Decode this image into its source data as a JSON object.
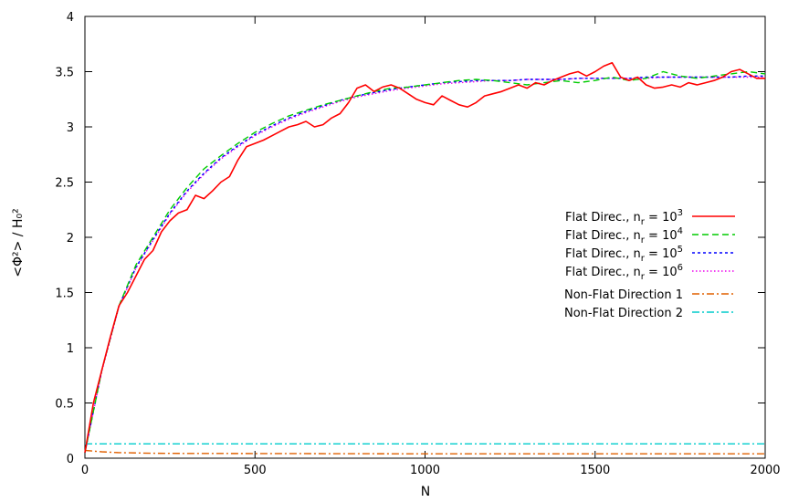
{
  "chart_data": {
    "type": "line",
    "xlabel": "N",
    "ylabel": "<Φ²> / H₀²",
    "xlim": [
      0,
      2000
    ],
    "ylim": [
      0,
      4
    ],
    "x_ticks": [
      "0",
      "500",
      "1000",
      "1500",
      "2000"
    ],
    "y_ticks": [
      "0",
      "0.5",
      "1",
      "1.5",
      "2",
      "2.5",
      "3",
      "3.5",
      "4"
    ],
    "grid": false,
    "legend_position": "right",
    "series": [
      {
        "name": "Flat Direc., n_r = 10^3",
        "legend_prefix": "Flat Direc., n",
        "legend_sub": "r",
        "legend_mid": " = 10",
        "legend_sup": "3",
        "color": "#ff0000",
        "dash": "",
        "x": [
          0,
          25,
          50,
          75,
          100,
          125,
          150,
          175,
          200,
          225,
          250,
          275,
          300,
          325,
          350,
          375,
          400,
          425,
          450,
          475,
          500,
          525,
          550,
          575,
          600,
          625,
          650,
          675,
          700,
          725,
          750,
          775,
          800,
          825,
          850,
          875,
          900,
          925,
          950,
          975,
          1000,
          1025,
          1050,
          1075,
          1100,
          1125,
          1150,
          1175,
          1200,
          1225,
          1250,
          1275,
          1300,
          1325,
          1350,
          1375,
          1400,
          1425,
          1450,
          1475,
          1500,
          1525,
          1550,
          1575,
          1600,
          1625,
          1650,
          1675,
          1700,
          1725,
          1750,
          1775,
          1800,
          1825,
          1850,
          1875,
          1900,
          1925,
          1950,
          1975,
          2000
        ],
        "y": [
          0.05,
          0.5,
          0.8,
          1.1,
          1.38,
          1.5,
          1.65,
          1.8,
          1.88,
          2.05,
          2.15,
          2.22,
          2.25,
          2.38,
          2.35,
          2.42,
          2.5,
          2.55,
          2.7,
          2.82,
          2.85,
          2.88,
          2.92,
          2.96,
          3.0,
          3.02,
          3.05,
          3.0,
          3.02,
          3.08,
          3.12,
          3.22,
          3.35,
          3.38,
          3.32,
          3.36,
          3.38,
          3.35,
          3.3,
          3.25,
          3.22,
          3.2,
          3.28,
          3.24,
          3.2,
          3.18,
          3.22,
          3.28,
          3.3,
          3.32,
          3.35,
          3.38,
          3.35,
          3.4,
          3.38,
          3.42,
          3.45,
          3.48,
          3.5,
          3.46,
          3.5,
          3.55,
          3.58,
          3.45,
          3.42,
          3.45,
          3.38,
          3.35,
          3.36,
          3.38,
          3.36,
          3.4,
          3.38,
          3.4,
          3.42,
          3.45,
          3.5,
          3.52,
          3.48,
          3.44,
          3.44
        ]
      },
      {
        "name": "Flat Direc., n_r = 10^4",
        "legend_prefix": "Flat Direc., n",
        "legend_sub": "r",
        "legend_mid": " = 10",
        "legend_sup": "4",
        "color": "#00cc00",
        "dash": "7,4",
        "x": [
          0,
          50,
          100,
          150,
          200,
          250,
          300,
          350,
          400,
          450,
          500,
          550,
          600,
          650,
          700,
          750,
          800,
          850,
          900,
          950,
          1000,
          1050,
          1100,
          1150,
          1200,
          1250,
          1300,
          1350,
          1400,
          1450,
          1500,
          1550,
          1600,
          1650,
          1700,
          1750,
          1800,
          1850,
          1900,
          1950,
          2000
        ],
        "y": [
          0.05,
          0.8,
          1.38,
          1.75,
          2.0,
          2.25,
          2.45,
          2.62,
          2.74,
          2.85,
          2.95,
          3.03,
          3.1,
          3.15,
          3.2,
          3.24,
          3.28,
          3.32,
          3.35,
          3.36,
          3.38,
          3.4,
          3.42,
          3.43,
          3.42,
          3.4,
          3.38,
          3.4,
          3.42,
          3.4,
          3.42,
          3.45,
          3.42,
          3.44,
          3.5,
          3.46,
          3.44,
          3.46,
          3.48,
          3.5,
          3.48
        ]
      },
      {
        "name": "Flat Direc., n_r = 10^5",
        "legend_prefix": "Flat Direc., n",
        "legend_sub": "r",
        "legend_mid": " = 10",
        "legend_sup": "5",
        "color": "#0000ff",
        "dash": "3,3",
        "x": [
          0,
          50,
          100,
          150,
          200,
          250,
          300,
          350,
          400,
          450,
          500,
          550,
          600,
          650,
          700,
          750,
          800,
          850,
          900,
          950,
          1000,
          1050,
          1100,
          1150,
          1200,
          1250,
          1300,
          1350,
          1400,
          1450,
          1500,
          1550,
          1600,
          1650,
          1700,
          1750,
          1800,
          1850,
          1900,
          1950,
          2000
        ],
        "y": [
          0.05,
          0.8,
          1.38,
          1.73,
          1.98,
          2.22,
          2.42,
          2.58,
          2.72,
          2.83,
          2.93,
          3.01,
          3.08,
          3.14,
          3.19,
          3.24,
          3.28,
          3.31,
          3.34,
          3.36,
          3.38,
          3.4,
          3.41,
          3.42,
          3.42,
          3.42,
          3.43,
          3.43,
          3.43,
          3.44,
          3.44,
          3.44,
          3.44,
          3.45,
          3.45,
          3.45,
          3.45,
          3.45,
          3.45,
          3.46,
          3.46
        ]
      },
      {
        "name": "Flat Direc., n_r = 10^6",
        "legend_prefix": "Flat Direc., n",
        "legend_sub": "r",
        "legend_mid": " = 10",
        "legend_sup": "6",
        "color": "#ee00ee",
        "dash": "1.5,2.5",
        "x": [
          0,
          50,
          100,
          150,
          200,
          250,
          300,
          350,
          400,
          450,
          500,
          550,
          600,
          650,
          700,
          750,
          800,
          850,
          900,
          950,
          1000,
          1050,
          1100,
          1150,
          1200,
          1250,
          1300,
          1350,
          1400,
          1450,
          1500,
          1550,
          1600,
          1650,
          1700,
          1750,
          1800,
          1850,
          1900,
          1950,
          2000
        ],
        "y": [
          0.05,
          0.79,
          1.37,
          1.72,
          1.97,
          2.21,
          2.41,
          2.57,
          2.71,
          2.82,
          2.92,
          3.0,
          3.07,
          3.13,
          3.18,
          3.23,
          3.27,
          3.3,
          3.33,
          3.35,
          3.37,
          3.39,
          3.4,
          3.41,
          3.42,
          3.42,
          3.43,
          3.43,
          3.43,
          3.44,
          3.44,
          3.44,
          3.44,
          3.44,
          3.45,
          3.45,
          3.45,
          3.45,
          3.45,
          3.45,
          3.45
        ]
      },
      {
        "name": "Non-Flat Direction 1",
        "legend_prefix": "Non-Flat Direction 1",
        "color": "#e06000",
        "dash": "8,3,2,3",
        "x": [
          0,
          20,
          50,
          100,
          200,
          300,
          500,
          1000,
          1500,
          2000
        ],
        "y": [
          0.07,
          0.065,
          0.058,
          0.05,
          0.045,
          0.043,
          0.042,
          0.04,
          0.04,
          0.04
        ]
      },
      {
        "name": "Non-Flat Direction 2",
        "legend_prefix": "Non-Flat Direction 2",
        "color": "#00cccc",
        "dash": "8,3,2,3",
        "x": [
          0,
          500,
          1000,
          1500,
          2000
        ],
        "y": [
          0.13,
          0.13,
          0.13,
          0.13,
          0.13
        ]
      }
    ]
  }
}
